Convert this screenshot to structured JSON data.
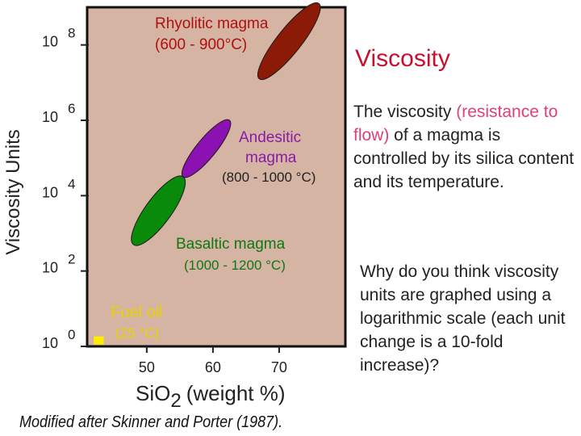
{
  "slide": {
    "title": "Viscosity",
    "para1_a": "The viscosity ",
    "para1_highlight": "(resistance to flow)",
    "para1_b": " of a magma is controlled by its silica content and its temperature.",
    "para2": "Why do you think viscosity units are graphed using a logarithmic scale (each unit change is a 10-fold increase)?",
    "credit": "Modified after Skinner and Porter (1987)."
  },
  "colors": {
    "plot_bg": "#d6b4a4",
    "rhyolitic": "#8b1a06",
    "andesitic": "#8c11b3",
    "basaltic": "#0a8a0a",
    "fuel_oil": "#ffee00",
    "label_red": "#b01010",
    "label_purple": "#8a1aa8",
    "label_green": "#117711",
    "label_yellow": "#e8d200"
  },
  "chart_data": {
    "type": "scatter",
    "title": "",
    "ylabel": "Viscosity Units",
    "xlabel_main": "SiO",
    "xlabel_sub": "2",
    "xlabel_unit": "(weight %)",
    "xlim": [
      41,
      80
    ],
    "ylim": [
      0,
      9
    ],
    "x_ticks": [
      50,
      60,
      70
    ],
    "y_ticks": [
      {
        "value": 0,
        "base": "10",
        "exp": "0"
      },
      {
        "value": 2,
        "base": "10",
        "exp": "2"
      },
      {
        "value": 4,
        "base": "10",
        "exp": "4"
      },
      {
        "value": 6,
        "base": "10",
        "exp": "6"
      },
      {
        "value": 8,
        "base": "10",
        "exp": "8"
      }
    ],
    "series": [
      {
        "name": "Rhyolitic magma",
        "range_label": "(600 - 900°C)",
        "silica_range": [
          67,
          76
        ],
        "log_viscosity_range": [
          7.1,
          9.1
        ],
        "color_key": "rhyolitic",
        "label_color_key": "label_red"
      },
      {
        "name": "Andesitic magma",
        "name_line1": "Andesitic",
        "name_line2": "magma",
        "range_label": "(800 - 1000 °C)",
        "silica_range": [
          55.5,
          62.5
        ],
        "log_viscosity_range": [
          4.5,
          6.0
        ],
        "color_key": "andesitic",
        "label_color_key": "label_purple"
      },
      {
        "name": "Basaltic magma",
        "range_label": "(1000 - 1200 °C)",
        "silica_range": [
          48,
          55.5
        ],
        "log_viscosity_range": [
          2.7,
          4.5
        ],
        "color_key": "basaltic",
        "label_color_key": "label_green"
      },
      {
        "name": "Fuel oil",
        "range_label": "(25 °C)",
        "silica_range": [
          42,
          43.5
        ],
        "log_viscosity_range": [
          0.0,
          0.05
        ],
        "color_key": "fuel_oil",
        "label_color_key": "label_yellow"
      }
    ]
  }
}
